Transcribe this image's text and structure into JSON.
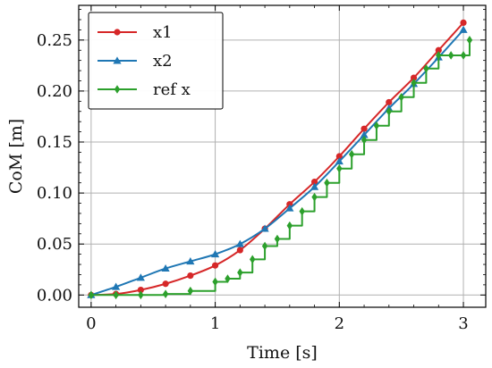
{
  "chart_data": {
    "type": "line",
    "title": "",
    "xlabel": "Time [s]",
    "ylabel": "CoM [m]",
    "xlim": [
      -0.1,
      3.18
    ],
    "ylim": [
      -0.012,
      0.284
    ],
    "x_ticks": [
      0,
      1,
      2,
      3
    ],
    "y_ticks": [
      0.0,
      0.05,
      0.1,
      0.15,
      0.2,
      0.25
    ],
    "x_tick_labels": [
      "0",
      "1",
      "2",
      "3"
    ],
    "y_tick_labels": [
      "0.00",
      "0.05",
      "0.10",
      "0.15",
      "0.20",
      "0.25"
    ],
    "grid": true,
    "legend_position": "top-left",
    "series": [
      {
        "name": "x1",
        "color": "#d62728",
        "marker": "circle",
        "line_style": "smooth",
        "x": [
          0,
          0.2,
          0.4,
          0.6,
          0.8,
          1.0,
          1.2,
          1.4,
          1.6,
          1.8,
          2.0,
          2.2,
          2.4,
          2.6,
          2.8,
          3.0
        ],
        "y": [
          0.0,
          0.001,
          0.005,
          0.011,
          0.019,
          0.029,
          0.044,
          0.065,
          0.089,
          0.111,
          0.136,
          0.163,
          0.189,
          0.213,
          0.24,
          0.267
        ]
      },
      {
        "name": "x2",
        "color": "#1f77b4",
        "marker": "triangle",
        "line_style": "smooth",
        "x": [
          0,
          0.2,
          0.4,
          0.6,
          0.8,
          1.0,
          1.2,
          1.4,
          1.6,
          1.8,
          2.0,
          2.2,
          2.4,
          2.6,
          2.8,
          3.0
        ],
        "y": [
          0.0,
          0.008,
          0.017,
          0.026,
          0.033,
          0.04,
          0.05,
          0.065,
          0.085,
          0.106,
          0.131,
          0.157,
          0.183,
          0.207,
          0.233,
          0.26
        ]
      },
      {
        "name": "ref x",
        "color": "#2ca02c",
        "marker": "diamond",
        "line_style": "step",
        "x": [
          0,
          0.2,
          0.4,
          0.6,
          0.8,
          1.0,
          1.1,
          1.2,
          1.3,
          1.4,
          1.5,
          1.6,
          1.7,
          1.8,
          1.9,
          2.0,
          2.1,
          2.2,
          2.3,
          2.4,
          2.5,
          2.6,
          2.7,
          2.8,
          2.9,
          3.0,
          3.05
        ],
        "y": [
          0.0,
          0.0,
          0.0,
          0.001,
          0.004,
          0.013,
          0.016,
          0.022,
          0.035,
          0.048,
          0.055,
          0.068,
          0.082,
          0.096,
          0.11,
          0.124,
          0.138,
          0.152,
          0.166,
          0.18,
          0.194,
          0.208,
          0.222,
          0.235,
          0.235,
          0.235,
          0.25
        ]
      }
    ]
  }
}
